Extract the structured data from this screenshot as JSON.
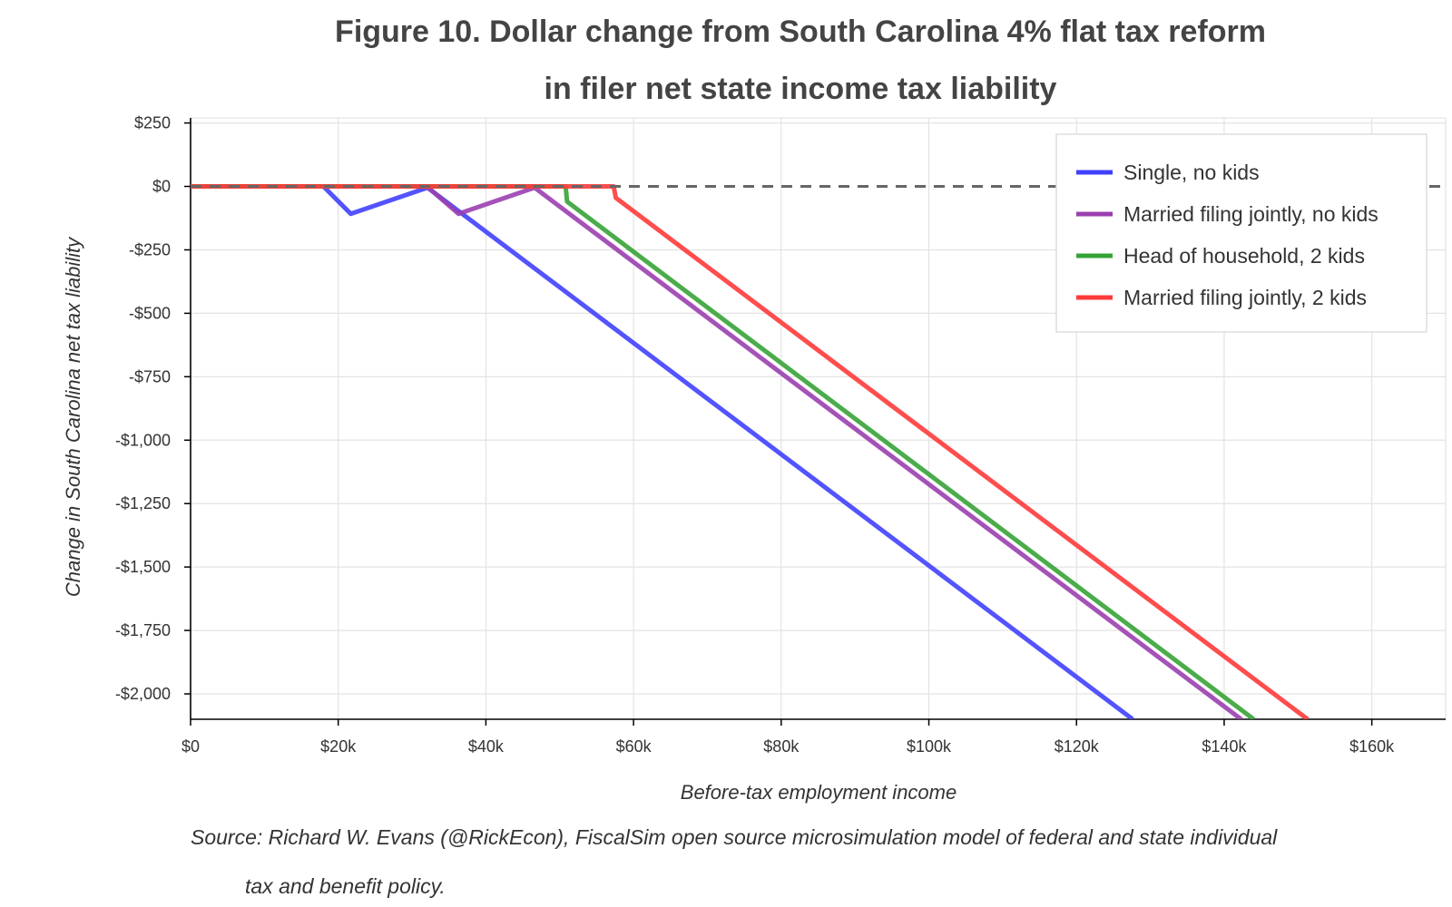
{
  "chart_data": {
    "type": "line",
    "title": "Figure 10. Dollar change from South Carolina 4% flat tax reform",
    "subtitle": "in filer net state income tax liability",
    "xlabel": "Before-tax employment income",
    "ylabel": "Change in South Carolina net tax liability",
    "xlim": [
      0,
      170000
    ],
    "ylim": [
      -2100,
      270
    ],
    "x_ticks": [
      0,
      20000,
      40000,
      60000,
      80000,
      100000,
      120000,
      140000,
      160000
    ],
    "x_tick_labels": [
      "$0",
      "$20k",
      "$40k",
      "$60k",
      "$80k",
      "$100k",
      "$120k",
      "$140k",
      "$160k"
    ],
    "y_ticks": [
      250,
      0,
      -250,
      -500,
      -750,
      -1000,
      -1250,
      -1500,
      -1750,
      -2000
    ],
    "y_tick_labels": [
      "$250",
      "$0",
      "-$250",
      "-$500",
      "-$750",
      "-$1,000",
      "-$1,250",
      "-$1,500",
      "-$1,750",
      "-$2,000"
    ],
    "grid": true,
    "legend_position": "top-right",
    "zero_line": {
      "y": 0,
      "style": "dashed",
      "color": "#666666"
    },
    "series": [
      {
        "name": "Single, no kids",
        "color": "#4040ff",
        "points": [
          [
            0,
            0
          ],
          [
            18000,
            0
          ],
          [
            21700,
            -108
          ],
          [
            32100,
            -5
          ],
          [
            127600,
            -2100
          ]
        ]
      },
      {
        "name": "Married filing jointly, no kids",
        "color": "#9b3fb0",
        "points": [
          [
            0,
            0
          ],
          [
            32000,
            0
          ],
          [
            36300,
            -108
          ],
          [
            46600,
            -5
          ],
          [
            142300,
            -2100
          ]
        ]
      },
      {
        "name": "Head of household, 2 kids",
        "color": "#36a336",
        "points": [
          [
            0,
            0
          ],
          [
            50800,
            0
          ],
          [
            51000,
            -60
          ],
          [
            144000,
            -2100
          ]
        ]
      },
      {
        "name": "Married filing jointly, 2 kids",
        "color": "#ff3a3a",
        "points": [
          [
            0,
            0
          ],
          [
            57300,
            0
          ],
          [
            57600,
            -45
          ],
          [
            151300,
            -2100
          ]
        ]
      }
    ],
    "source_lines": [
      "Source: Richard W. Evans (@RickEcon), FiscalSim open source microsimulation model of federal and state individual",
      "tax and benefit policy."
    ]
  }
}
